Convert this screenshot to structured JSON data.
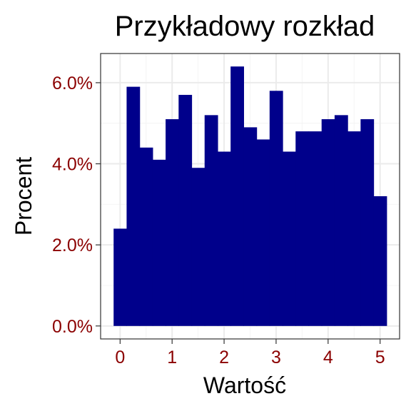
{
  "chart_data": {
    "type": "bar",
    "title": "Przykładowy rozkład",
    "xlabel": "Wartość",
    "ylabel": "Procent",
    "bin_width": 0.25,
    "bin_start": -0.125,
    "values": [
      2.4,
      5.9,
      4.4,
      4.1,
      5.1,
      5.7,
      3.9,
      5.2,
      4.3,
      6.4,
      4.9,
      4.6,
      5.8,
      4.3,
      4.8,
      4.8,
      5.1,
      5.2,
      4.8,
      5.1,
      3.2
    ],
    "xlim": [
      -0.375,
      5.375
    ],
    "ylim": [
      -0.32,
      6.72
    ],
    "x_ticks": [
      0,
      1,
      2,
      3,
      4,
      5
    ],
    "x_tick_labels": [
      "0",
      "1",
      "2",
      "3",
      "4",
      "5"
    ],
    "y_ticks": [
      0,
      2,
      4,
      6
    ],
    "y_tick_labels": [
      "0.0%",
      "2.0%",
      "4.0%",
      "6.0%"
    ],
    "grid": true,
    "legend": "none",
    "colors": {
      "bar": "#00008B",
      "tick_label": "#8B0000",
      "panel_border": "#333333",
      "grid_major": "#EBEBEB",
      "grid_minor": "#F4F4F4"
    }
  }
}
